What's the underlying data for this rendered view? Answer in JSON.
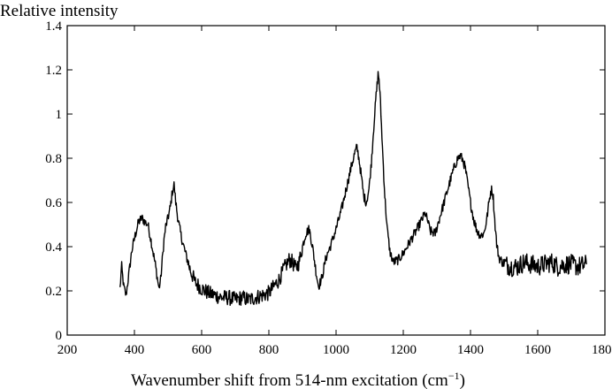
{
  "chart_data": {
    "type": "line",
    "title": "",
    "ylabel": "Relative intensity",
    "xlabel_main": "Wavenumber shift from 514-nm excitation (cm",
    "xlabel_sup": "−1",
    "xlabel_close": ")",
    "xlim": [
      200,
      1800
    ],
    "ylim": [
      0,
      1.4
    ],
    "xticks": [
      200,
      400,
      600,
      800,
      1000,
      1200,
      1400,
      1600,
      1800
    ],
    "yticks": [
      0,
      0.2,
      0.4,
      0.6,
      0.8,
      1,
      1.2,
      1.4
    ],
    "xtick_labels": [
      "200",
      "400",
      "600",
      "800",
      "1000",
      "1200",
      "1400",
      "1600",
      "1800"
    ],
    "ytick_labels": [
      "0",
      "0.2",
      "0.4",
      "0.6",
      "0.8",
      "1",
      "1.2",
      "1.4"
    ],
    "grid": false,
    "series": [
      {
        "color": "#000000",
        "x": [
          357,
          362,
          368,
          375,
          383,
          392,
          402,
          412,
          422,
          432,
          440,
          448,
          455,
          462,
          468,
          473,
          478,
          483,
          488,
          493,
          500,
          507,
          513,
          518,
          523,
          530,
          540,
          552,
          565,
          580,
          600,
          620,
          640,
          660,
          680,
          700,
          720,
          740,
          760,
          780,
          800,
          815,
          830,
          845,
          860,
          870,
          880,
          890,
          900,
          910,
          920,
          930,
          940,
          948,
          958,
          970,
          985,
          1000,
          1015,
          1030,
          1045,
          1055,
          1062,
          1068,
          1075,
          1082,
          1090,
          1098,
          1105,
          1112,
          1118,
          1122,
          1125,
          1128,
          1132,
          1138,
          1145,
          1152,
          1160,
          1170,
          1185,
          1200,
          1215,
          1230,
          1245,
          1258,
          1265,
          1272,
          1280,
          1295,
          1310,
          1325,
          1340,
          1352,
          1362,
          1370,
          1378,
          1385,
          1392,
          1400,
          1410,
          1420,
          1430,
          1440,
          1448,
          1455,
          1460,
          1464,
          1468,
          1472,
          1478,
          1485,
          1495,
          1505,
          1520,
          1540,
          1560,
          1580,
          1600,
          1620,
          1640,
          1660,
          1680,
          1700,
          1720,
          1745
        ],
        "y": [
          0.21,
          0.31,
          0.22,
          0.18,
          0.27,
          0.38,
          0.45,
          0.51,
          0.53,
          0.51,
          0.5,
          0.44,
          0.38,
          0.32,
          0.26,
          0.21,
          0.25,
          0.34,
          0.43,
          0.49,
          0.53,
          0.58,
          0.65,
          0.68,
          0.6,
          0.52,
          0.44,
          0.37,
          0.3,
          0.24,
          0.21,
          0.19,
          0.18,
          0.17,
          0.17,
          0.16,
          0.17,
          0.16,
          0.17,
          0.18,
          0.19,
          0.22,
          0.25,
          0.3,
          0.34,
          0.33,
          0.3,
          0.33,
          0.4,
          0.46,
          0.48,
          0.4,
          0.29,
          0.22,
          0.26,
          0.35,
          0.41,
          0.48,
          0.56,
          0.66,
          0.76,
          0.82,
          0.85,
          0.8,
          0.72,
          0.63,
          0.6,
          0.66,
          0.78,
          0.94,
          1.06,
          1.13,
          1.18,
          1.16,
          1.05,
          0.85,
          0.63,
          0.48,
          0.38,
          0.33,
          0.34,
          0.37,
          0.41,
          0.45,
          0.49,
          0.53,
          0.55,
          0.52,
          0.47,
          0.46,
          0.54,
          0.62,
          0.7,
          0.76,
          0.8,
          0.81,
          0.79,
          0.75,
          0.68,
          0.6,
          0.52,
          0.47,
          0.45,
          0.46,
          0.52,
          0.6,
          0.65,
          0.66,
          0.62,
          0.52,
          0.41,
          0.35,
          0.33,
          0.32,
          0.31,
          0.31,
          0.33,
          0.32,
          0.31,
          0.32,
          0.33,
          0.31,
          0.32,
          0.32,
          0.31,
          0.32
        ]
      }
    ]
  }
}
